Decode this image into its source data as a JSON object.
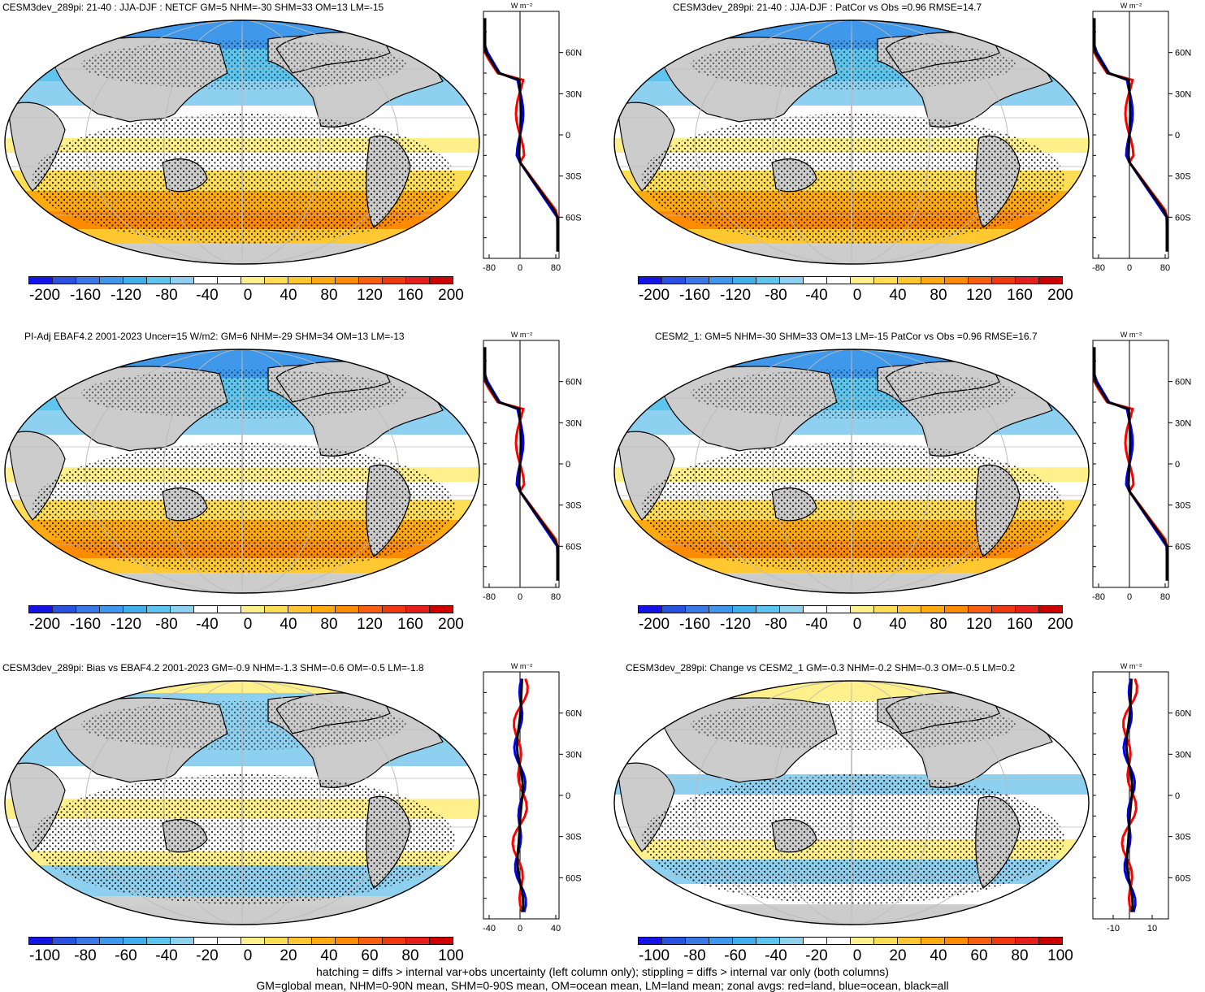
{
  "panels": [
    {
      "title": "CESM3dev_289pi: 21-40 : JJA-DJF : NETCF GM=5 NHM=-30 SHM=33 OM=13 LM=-15",
      "colorbar_labels": [
        "-200",
        "-160",
        "-120",
        "-80",
        "-40",
        "0",
        "40",
        "80",
        "120",
        "160",
        "200"
      ],
      "zonal_ticks": [
        "-80",
        "0",
        "80"
      ],
      "lat_labels": [
        "60N",
        "30N",
        "0",
        "30S",
        "60S"
      ],
      "units": "W m⁻²",
      "scheme": "large"
    },
    {
      "title": "CESM3dev_289pi: 21-40 : JJA-DJF : PatCor vs Obs =0.96 RMSE=14.7",
      "colorbar_labels": [
        "-200",
        "-160",
        "-120",
        "-80",
        "-40",
        "0",
        "40",
        "80",
        "120",
        "160",
        "200"
      ],
      "zonal_ticks": [
        "-80",
        "0",
        "80"
      ],
      "lat_labels": [
        "60N",
        "30N",
        "0",
        "30S",
        "60S"
      ],
      "units": "W m⁻²",
      "scheme": "large"
    },
    {
      "title": "PI-Adj EBAF4.2 2001-2023 Uncer=15 W/m2: GM=6 NHM=-29 SHM=34 OM=13 LM=-13",
      "colorbar_labels": [
        "-200",
        "-160",
        "-120",
        "-80",
        "-40",
        "0",
        "40",
        "80",
        "120",
        "160",
        "200"
      ],
      "zonal_ticks": [
        "-80",
        "0",
        "80"
      ],
      "lat_labels": [
        "60N",
        "30N",
        "0",
        "30S",
        "60S"
      ],
      "units": "W m⁻²",
      "scheme": "large"
    },
    {
      "title": "CESM2_1: GM=5 NHM=-30 SHM=33 OM=13 LM=-15 PatCor vs Obs =0.96 RMSE=16.7",
      "colorbar_labels": [
        "-200",
        "-160",
        "-120",
        "-80",
        "-40",
        "0",
        "40",
        "80",
        "120",
        "160",
        "200"
      ],
      "zonal_ticks": [
        "-80",
        "0",
        "80"
      ],
      "lat_labels": [
        "60N",
        "30N",
        "0",
        "30S",
        "60S"
      ],
      "units": "W m⁻²",
      "scheme": "large"
    },
    {
      "title": "CESM3dev_289pi: Bias vs EBAF4.2 2001-2023 GM=-0.9 NHM=-1.3 SHM=-0.6 OM=-0.5 LM=-1.8",
      "colorbar_labels": [
        "-100",
        "-80",
        "-60",
        "-40",
        "-20",
        "0",
        "20",
        "40",
        "60",
        "80",
        "100"
      ],
      "zonal_ticks": [
        "-40",
        "0",
        "40"
      ],
      "lat_labels": [
        "60N",
        "30N",
        "0",
        "30S",
        "60S"
      ],
      "units": "W m⁻²",
      "scheme": "bias"
    },
    {
      "title": "CESM3dev_289pi: Change vs CESM2_1 GM=-0.3 NHM=-0.2 SHM=-0.3 OM=-0.5 LM=0.2",
      "colorbar_labels": [
        "-100",
        "-80",
        "-60",
        "-40",
        "-20",
        "0",
        "20",
        "40",
        "60",
        "80",
        "100"
      ],
      "zonal_ticks": [
        "-10",
        "10"
      ],
      "lat_labels": [
        "60N",
        "30N",
        "0",
        "30S",
        "60S"
      ],
      "units": "W m⁻²",
      "scheme": "change"
    }
  ],
  "colorbar_colors": [
    "#1414e6",
    "#2a52e0",
    "#3a78e6",
    "#3f98ea",
    "#3fb0ea",
    "#5ec6ee",
    "#8ed0f0",
    "#ffffff",
    "#ffffff",
    "#fff08c",
    "#ffdd55",
    "#ffc830",
    "#ffaa10",
    "#ff8c00",
    "#f86010",
    "#ee3a10",
    "#e61e1e",
    "#cc0000"
  ],
  "zonal_colors": {
    "land": "#ff0000",
    "ocean": "#0000ff",
    "all": "#000000"
  },
  "footer": {
    "line1": "hatching = diffs > internal var+obs uncertainty (left column only); stippling = diffs > internal var only (both columns)",
    "line2": "GM=global mean, NHM=0-90N mean, SHM=0-90S mean, OM=ocean mean, LM=land mean; zonal avgs: red=land, blue=ocean, black=all"
  }
}
